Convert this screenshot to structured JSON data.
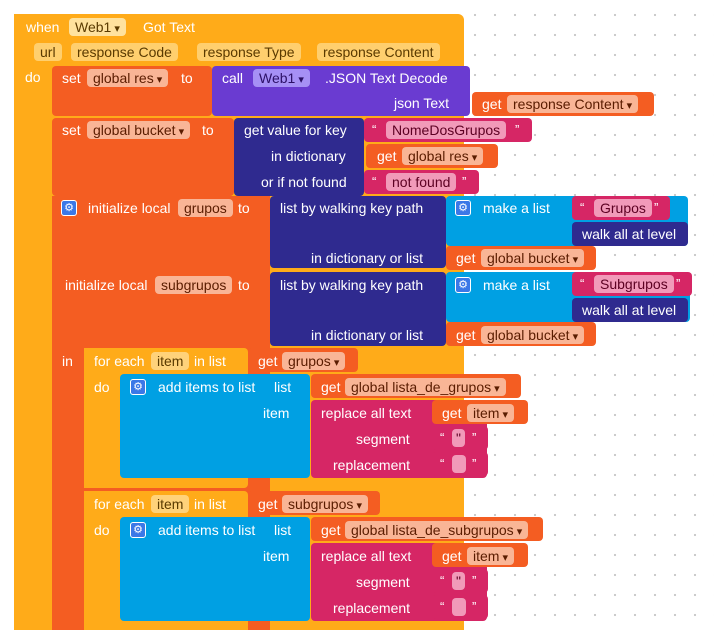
{
  "event": {
    "when": "when",
    "component": "Web1",
    "event_name": "Got Text",
    "params": [
      "url",
      "responseCode",
      "responseType",
      "responseContent"
    ],
    "do": "do"
  },
  "p": {
    "url": "url",
    "code": "response Code",
    "type": "response Type",
    "content": "response Content"
  },
  "k": {
    "set": "set",
    "to": "to",
    "call": "call",
    "web1": "Web1",
    "json_decode": ".JSON Text Decode",
    "json_text": "json Text",
    "get": "get",
    "response_content": "response Content",
    "global_res": "global res",
    "global_bucket": "global bucket",
    "get_value_key": "get value for key",
    "in_dict": "in dictionary",
    "or_if_not_found": "or if not found",
    "nome_dos_grupos": "NomeDosGrupos",
    "not_found": "not found",
    "init_local": "initialize local",
    "grupos": "grupos",
    "subgrupos": "subgrupos",
    "walk_path": "list by walking key path",
    "make_list": "make a list",
    "Grupos": "Grupos",
    "Subgrupos": "Subgrupos",
    "walk_all": "walk all at level",
    "in_dict_or_list": "in dictionary or list",
    "in": "in",
    "for_each": "for each",
    "item": "item",
    "in_list": "in list",
    "add_items": "add items to list",
    "list": "list",
    "lista_grupos": "global lista_de_grupos",
    "lista_subgrupos": "global lista_de_subgrupos",
    "replace_all": "replace all text",
    "segment": "segment",
    "replacement": "replacement",
    "q_open": "“",
    "q_close": "”",
    "quote_char": "\"",
    "gear": "gear-icon"
  }
}
